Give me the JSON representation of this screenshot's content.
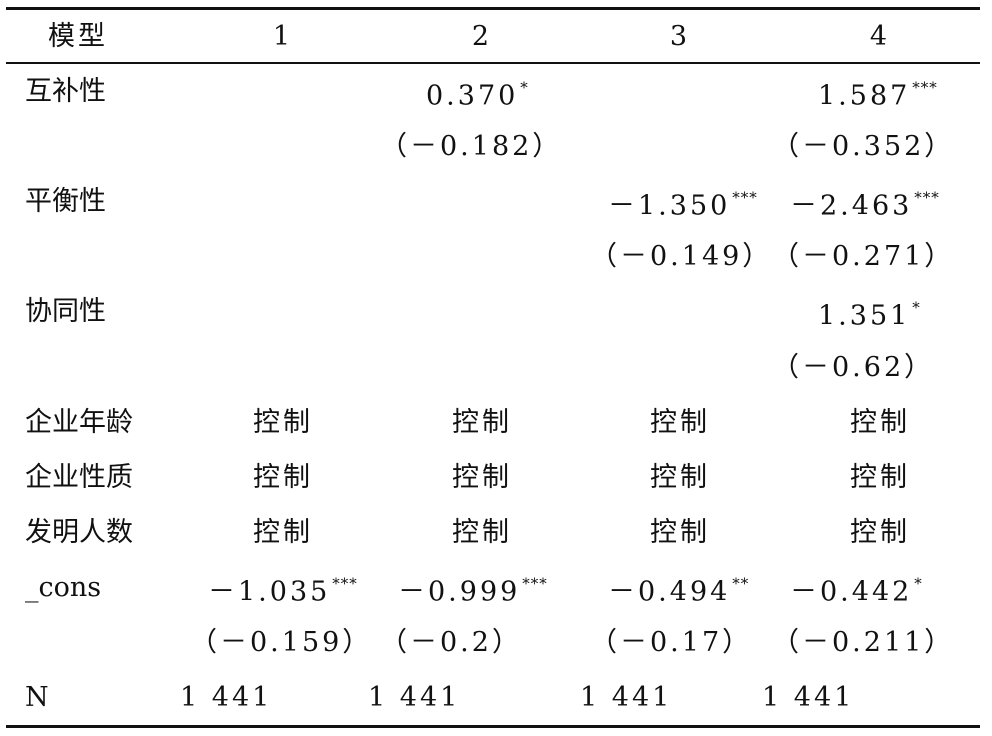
{
  "table": {
    "header": [
      "模型",
      "1",
      "2",
      "3",
      "4"
    ],
    "rows": [
      {
        "label": "互补性",
        "cells": [
          null,
          {
            "text": "0.370",
            "stars": "*"
          },
          null,
          {
            "text": "1.587",
            "stars": "***"
          }
        ]
      },
      {
        "label": null,
        "cells": [
          null,
          {
            "text": "（－0.182）"
          },
          null,
          {
            "text": "（－0.352）"
          }
        ]
      },
      {
        "label": "平衡性",
        "cells": [
          null,
          null,
          {
            "text": "－1.350",
            "stars": "***"
          },
          {
            "text": "－2.463",
            "stars": "***"
          }
        ]
      },
      {
        "label": null,
        "cells": [
          null,
          null,
          {
            "text": "（－0.149）"
          },
          {
            "text": "（－0.271）"
          }
        ]
      },
      {
        "label": "协同性",
        "cells": [
          null,
          null,
          null,
          {
            "text": "1.351",
            "stars": "*"
          }
        ]
      },
      {
        "label": null,
        "cells": [
          null,
          null,
          null,
          {
            "text": "（－0.62）"
          }
        ]
      },
      {
        "label": "企业年龄",
        "cells": [
          {
            "text": "控制"
          },
          {
            "text": "控制"
          },
          {
            "text": "控制"
          },
          {
            "text": "控制"
          }
        ]
      },
      {
        "label": "企业性质",
        "cells": [
          {
            "text": "控制"
          },
          {
            "text": "控制"
          },
          {
            "text": "控制"
          },
          {
            "text": "控制"
          }
        ]
      },
      {
        "label": "发明人数",
        "cells": [
          {
            "text": "控制"
          },
          {
            "text": "控制"
          },
          {
            "text": "控制"
          },
          {
            "text": "控制"
          }
        ]
      },
      {
        "label": "_cons",
        "cells": [
          {
            "text": "－1.035",
            "stars": "***"
          },
          {
            "text": "－0.999",
            "stars": "***"
          },
          {
            "text": "－0.494",
            "stars": "**"
          },
          {
            "text": "－0.442",
            "stars": "*"
          }
        ]
      },
      {
        "label": null,
        "cells": [
          {
            "text": "（－0.159）"
          },
          {
            "text": "（－0.2）"
          },
          {
            "text": "（－0.17）"
          },
          {
            "text": "（－0.211）"
          }
        ]
      },
      {
        "label": "N",
        "cells": [
          {
            "text": "1 441"
          },
          {
            "text": "1 441"
          },
          {
            "text": "1 441"
          },
          {
            "text": "1 441"
          }
        ]
      }
    ]
  }
}
